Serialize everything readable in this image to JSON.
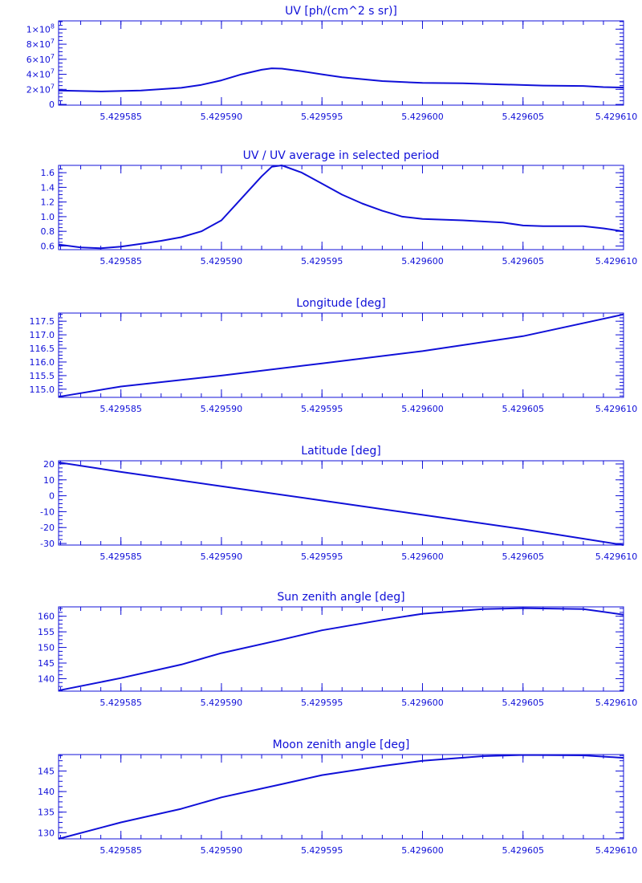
{
  "chart_data": [
    {
      "type": "line",
      "title": "UV [ph/(cm^2 s sr)]",
      "xlim": [
        5.4295819,
        5.42961
      ],
      "ylim": [
        -1000000,
        111000000
      ],
      "xticks": [
        "5.429585",
        "5.429590",
        "5.429595",
        "5.429600",
        "5.429605",
        "5.429610"
      ],
      "xtick_values": [
        5.429585,
        5.42959,
        5.429595,
        5.4296,
        5.429605,
        5.42961
      ],
      "yticks": [
        {
          "v": 100000000,
          "base": "1×10",
          "exp": "8"
        },
        {
          "v": 80000000,
          "base": "8×10",
          "exp": "7"
        },
        {
          "v": 60000000,
          "base": "6×10",
          "exp": "7"
        },
        {
          "v": 40000000,
          "base": "4×10",
          "exp": "7"
        },
        {
          "v": 20000000,
          "base": "2×10",
          "exp": "7"
        },
        {
          "v": 0,
          "base": "0",
          "exp": ""
        }
      ],
      "series": [
        {
          "x": [
            5.4295819,
            5.429584,
            5.429586,
            5.429588,
            5.429589,
            5.42959,
            5.429591,
            5.429592,
            5.4295925,
            5.429593,
            5.429594,
            5.429595,
            5.429596,
            5.429598,
            5.4296,
            5.429602,
            5.429604,
            5.429606,
            5.429608,
            5.429609,
            5.42961
          ],
          "y": [
            18500000,
            17200000,
            18500000,
            22000000,
            26000000,
            32000000,
            40000000,
            46000000,
            48000000,
            47500000,
            44000000,
            40000000,
            36000000,
            31000000,
            28500000,
            28000000,
            26500000,
            25000000,
            24500000,
            23000000,
            22500000
          ]
        }
      ]
    },
    {
      "type": "line",
      "title": "UV / UV average in selected period",
      "xlim": [
        5.4295819,
        5.42961
      ],
      "ylim": [
        0.55,
        1.7
      ],
      "xticks": [
        "5.429585",
        "5.429590",
        "5.429595",
        "5.429600",
        "5.429605",
        "5.429610"
      ],
      "xtick_values": [
        5.429585,
        5.42959,
        5.429595,
        5.4296,
        5.429605,
        5.42961
      ],
      "yticks": [
        {
          "v": 1.6,
          "base": "1.6",
          "exp": ""
        },
        {
          "v": 1.4,
          "base": "1.4",
          "exp": ""
        },
        {
          "v": 1.2,
          "base": "1.2",
          "exp": ""
        },
        {
          "v": 1.0,
          "base": "1.0",
          "exp": ""
        },
        {
          "v": 0.8,
          "base": "0.8",
          "exp": ""
        },
        {
          "v": 0.6,
          "base": "0.6",
          "exp": ""
        }
      ],
      "series": [
        {
          "x": [
            5.4295819,
            5.429583,
            5.429584,
            5.429585,
            5.429586,
            5.429587,
            5.429588,
            5.429589,
            5.42959,
            5.429591,
            5.429592,
            5.4295925,
            5.429593,
            5.429594,
            5.429595,
            5.429596,
            5.429597,
            5.429598,
            5.429599,
            5.4296,
            5.429602,
            5.429604,
            5.429605,
            5.429606,
            5.429608,
            5.429609,
            5.42961
          ],
          "y": [
            0.62,
            0.58,
            0.57,
            0.59,
            0.63,
            0.67,
            0.72,
            0.8,
            0.95,
            1.25,
            1.55,
            1.68,
            1.7,
            1.6,
            1.45,
            1.3,
            1.18,
            1.08,
            1.0,
            0.97,
            0.95,
            0.92,
            0.88,
            0.87,
            0.87,
            0.84,
            0.8
          ]
        }
      ]
    },
    {
      "type": "line",
      "title": "Longitude [deg]",
      "xlim": [
        5.4295819,
        5.42961
      ],
      "ylim": [
        114.7,
        117.8
      ],
      "xticks": [
        "5.429585",
        "5.429590",
        "5.429595",
        "5.429600",
        "5.429605",
        "5.429610"
      ],
      "xtick_values": [
        5.429585,
        5.42959,
        5.429595,
        5.4296,
        5.429605,
        5.42961
      ],
      "yticks": [
        {
          "v": 117.5,
          "base": "117.5",
          "exp": ""
        },
        {
          "v": 117.0,
          "base": "117.0",
          "exp": ""
        },
        {
          "v": 116.5,
          "base": "116.5",
          "exp": ""
        },
        {
          "v": 116.0,
          "base": "116.0",
          "exp": ""
        },
        {
          "v": 115.5,
          "base": "115.5",
          "exp": ""
        },
        {
          "v": 115.0,
          "base": "115.0",
          "exp": ""
        }
      ],
      "series": [
        {
          "x": [
            5.4295819,
            5.429585,
            5.42959,
            5.429595,
            5.4296,
            5.429605,
            5.42961
          ],
          "y": [
            114.72,
            115.1,
            115.5,
            115.95,
            116.4,
            116.95,
            117.75
          ]
        }
      ]
    },
    {
      "type": "line",
      "title": "Latitude [deg]",
      "xlim": [
        5.4295819,
        5.42961
      ],
      "ylim": [
        -31,
        22
      ],
      "xticks": [
        "5.429585",
        "5.429590",
        "5.429595",
        "5.429600",
        "5.429605",
        "5.429610"
      ],
      "xtick_values": [
        5.429585,
        5.42959,
        5.429595,
        5.4296,
        5.429605,
        5.42961
      ],
      "yticks": [
        {
          "v": 20,
          "base": "20",
          "exp": ""
        },
        {
          "v": 10,
          "base": "10",
          "exp": ""
        },
        {
          "v": 0,
          "base": "0",
          "exp": ""
        },
        {
          "v": -10,
          "base": "-10",
          "exp": ""
        },
        {
          "v": -20,
          "base": "-20",
          "exp": ""
        },
        {
          "v": -30,
          "base": "-30",
          "exp": ""
        }
      ],
      "series": [
        {
          "x": [
            5.4295819,
            5.429585,
            5.42959,
            5.429595,
            5.4296,
            5.429605,
            5.42961
          ],
          "y": [
            21,
            15,
            6,
            -3,
            -12,
            -21,
            -31
          ]
        }
      ]
    },
    {
      "type": "line",
      "title": "Sun zenith angle [deg]",
      "xlim": [
        5.4295819,
        5.42961
      ],
      "ylim": [
        136,
        163
      ],
      "xticks": [
        "5.429585",
        "5.429590",
        "5.429595",
        "5.429600",
        "5.429605",
        "5.429610"
      ],
      "xtick_values": [
        5.429585,
        5.42959,
        5.429595,
        5.4296,
        5.429605,
        5.42961
      ],
      "yticks": [
        {
          "v": 160,
          "base": "160",
          "exp": ""
        },
        {
          "v": 155,
          "base": "155",
          "exp": ""
        },
        {
          "v": 150,
          "base": "150",
          "exp": ""
        },
        {
          "v": 145,
          "base": "145",
          "exp": ""
        },
        {
          "v": 140,
          "base": "140",
          "exp": ""
        }
      ],
      "series": [
        {
          "x": [
            5.4295819,
            5.429585,
            5.429588,
            5.42959,
            5.429593,
            5.429595,
            5.429598,
            5.4296,
            5.429603,
            5.429605,
            5.429608,
            5.42961
          ],
          "y": [
            136.2,
            140.2,
            144.5,
            148.2,
            152.5,
            155.5,
            158.8,
            160.8,
            162.3,
            162.6,
            162.3,
            160.5
          ]
        }
      ]
    },
    {
      "type": "line",
      "title": "Moon zenith angle [deg]",
      "xlim": [
        5.4295819,
        5.42961
      ],
      "ylim": [
        128.5,
        149
      ],
      "xticks": [
        "5.429585",
        "5.429590",
        "5.429595",
        "5.429600",
        "5.429605",
        "5.429610"
      ],
      "xtick_values": [
        5.429585,
        5.42959,
        5.429595,
        5.4296,
        5.429605,
        5.42961
      ],
      "yticks": [
        {
          "v": 145,
          "base": "145",
          "exp": ""
        },
        {
          "v": 140,
          "base": "140",
          "exp": ""
        },
        {
          "v": 135,
          "base": "135",
          "exp": ""
        },
        {
          "v": 130,
          "base": "130",
          "exp": ""
        }
      ],
      "series": [
        {
          "x": [
            5.4295819,
            5.429585,
            5.429588,
            5.42959,
            5.429593,
            5.429595,
            5.429598,
            5.4296,
            5.429603,
            5.429605,
            5.429608,
            5.42961
          ],
          "y": [
            128.5,
            132.5,
            135.8,
            138.6,
            141.8,
            144,
            146.2,
            147.5,
            148.6,
            148.9,
            148.8,
            148.2
          ]
        }
      ]
    }
  ],
  "colors": {
    "line": "#1010d8",
    "background": "#ffffff"
  }
}
